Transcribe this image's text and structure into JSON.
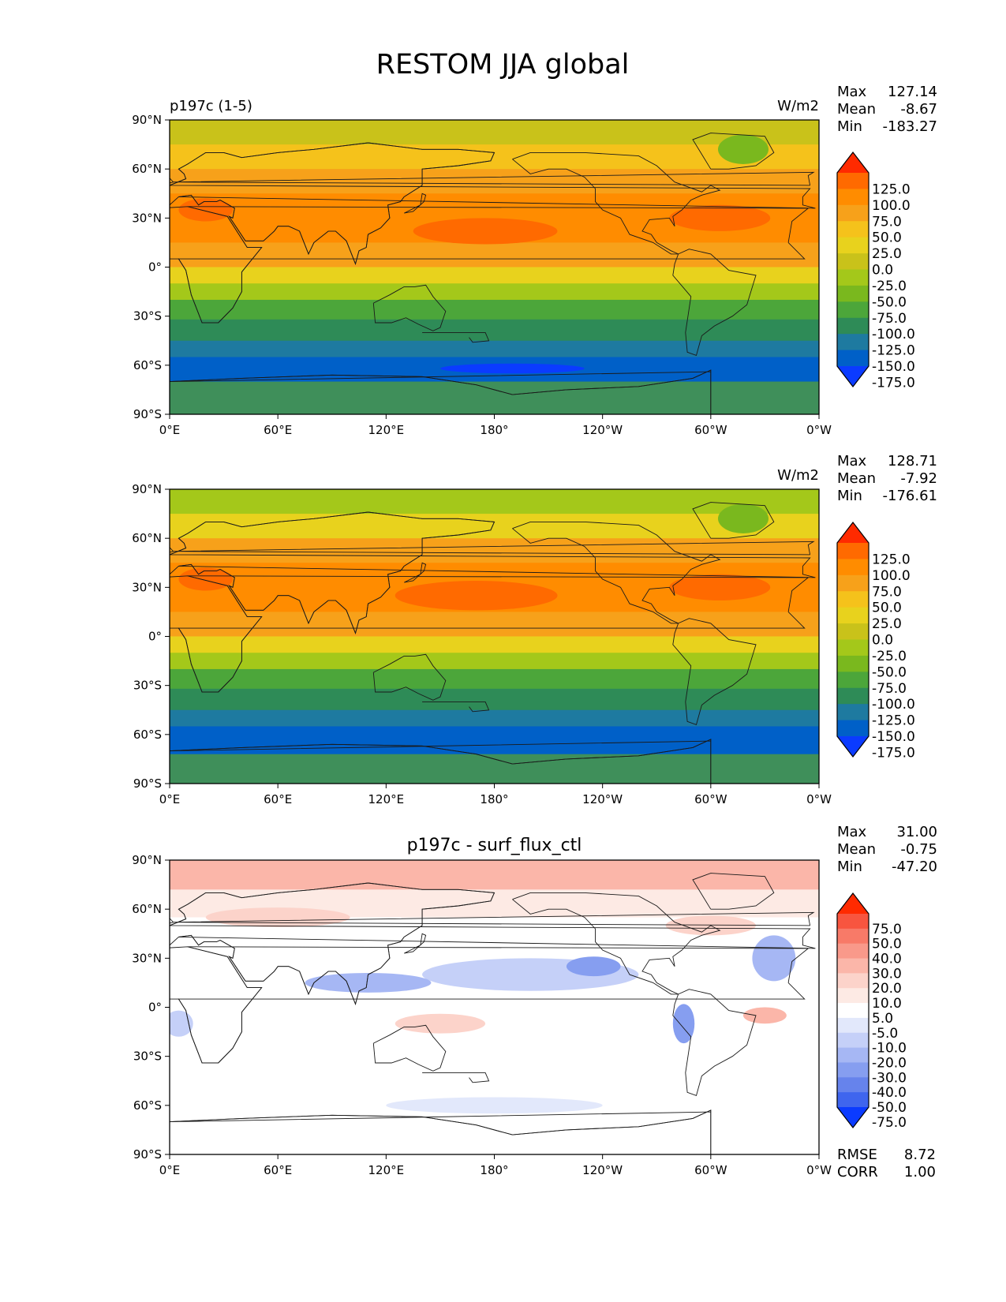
{
  "figure": {
    "title": "RESTOM JJA global"
  },
  "chart_data": [
    {
      "type": "heatmap",
      "title_left": "p197c (1-5)",
      "title_center": "",
      "units": "W/m2",
      "stats": [
        {
          "label": "Max",
          "value": "127.14"
        },
        {
          "label": "Mean",
          "value": "-8.67"
        },
        {
          "label": "Min",
          "value": "-183.27"
        }
      ],
      "footer_stats": [],
      "xticks": [
        "0°E",
        "60°E",
        "120°E",
        "180°",
        "120°W",
        "60°W",
        "0°W"
      ],
      "yticks": [
        "90°N",
        "60°N",
        "30°N",
        "0°",
        "30°S",
        "60°S",
        "90°S"
      ],
      "colorbar": {
        "labels": [
          "125.0",
          "100.0",
          "75.0",
          "50.0",
          "25.0",
          "0.0",
          "-25.0",
          "-50.0",
          "-75.0",
          "-100.0",
          "-125.0",
          "-150.0",
          "-175.0"
        ],
        "colors": [
          "#ff2a00",
          "#ff6a00",
          "#ff8c00",
          "#f7a11a",
          "#f5c21b",
          "#e8d21d",
          "#c9c21a",
          "#a4c81a",
          "#7ab81e",
          "#4ca63a",
          "#2e8b57",
          "#1e7aa0",
          "#0060c8",
          "#0b3bff"
        ]
      },
      "bands": [
        {
          "lat_top": 90,
          "lat_bottom": 75,
          "color": "#c9c21a"
        },
        {
          "lat_top": 75,
          "lat_bottom": 60,
          "color": "#f5c21b"
        },
        {
          "lat_top": 60,
          "lat_bottom": 45,
          "color": "#f7a11a"
        },
        {
          "lat_top": 45,
          "lat_bottom": 15,
          "color": "#ff8c00"
        },
        {
          "lat_top": 15,
          "lat_bottom": 0,
          "color": "#f7a11a"
        },
        {
          "lat_top": 0,
          "lat_bottom": -10,
          "color": "#e8d21d"
        },
        {
          "lat_top": -10,
          "lat_bottom": -20,
          "color": "#a4c81a"
        },
        {
          "lat_top": -20,
          "lat_bottom": -32,
          "color": "#4ca63a"
        },
        {
          "lat_top": -32,
          "lat_bottom": -45,
          "color": "#2e8b57"
        },
        {
          "lat_top": -45,
          "lat_bottom": -55,
          "color": "#1e7aa0"
        },
        {
          "lat_top": -55,
          "lat_bottom": -70,
          "color": "#0060c8"
        },
        {
          "lat_top": -70,
          "lat_bottom": -90,
          "color": "#3f8f5a"
        }
      ],
      "blobs": [
        {
          "lon": 175,
          "lat": 22,
          "rlon": 40,
          "rlat": 8,
          "color": "#ff6a00"
        },
        {
          "lon": 305,
          "lat": 30,
          "rlon": 28,
          "rlat": 8,
          "color": "#ff6a00"
        },
        {
          "lon": 20,
          "lat": 35,
          "rlon": 15,
          "rlat": 7,
          "color": "#ff6a00"
        },
        {
          "lon": 318,
          "lat": 72,
          "rlon": 14,
          "rlat": 9,
          "color": "#7ab81e"
        },
        {
          "lon": 190,
          "lat": -62,
          "rlon": 40,
          "rlat": 3,
          "color": "#0b3bff"
        }
      ]
    },
    {
      "type": "heatmap",
      "title_left": "",
      "title_center": "",
      "units": "W/m2",
      "stats": [
        {
          "label": "Max",
          "value": "128.71"
        },
        {
          "label": "Mean",
          "value": "-7.92"
        },
        {
          "label": "Min",
          "value": "-176.61"
        }
      ],
      "footer_stats": [],
      "xticks": [
        "0°E",
        "60°E",
        "120°E",
        "180°",
        "120°W",
        "60°W",
        "0°W"
      ],
      "yticks": [
        "90°N",
        "60°N",
        "30°N",
        "0°",
        "30°S",
        "60°S",
        "90°S"
      ],
      "colorbar": {
        "labels": [
          "125.0",
          "100.0",
          "75.0",
          "50.0",
          "25.0",
          "0.0",
          "-25.0",
          "-50.0",
          "-75.0",
          "-100.0",
          "-125.0",
          "-150.0",
          "-175.0"
        ],
        "colors": [
          "#ff2a00",
          "#ff6a00",
          "#ff8c00",
          "#f7a11a",
          "#f5c21b",
          "#e8d21d",
          "#c9c21a",
          "#a4c81a",
          "#7ab81e",
          "#4ca63a",
          "#2e8b57",
          "#1e7aa0",
          "#0060c8",
          "#0b3bff"
        ]
      },
      "bands": [
        {
          "lat_top": 90,
          "lat_bottom": 75,
          "color": "#a4c81a"
        },
        {
          "lat_top": 75,
          "lat_bottom": 60,
          "color": "#e8d21d"
        },
        {
          "lat_top": 60,
          "lat_bottom": 45,
          "color": "#f7a11a"
        },
        {
          "lat_top": 45,
          "lat_bottom": 15,
          "color": "#ff8c00"
        },
        {
          "lat_top": 15,
          "lat_bottom": 0,
          "color": "#f7a11a"
        },
        {
          "lat_top": 0,
          "lat_bottom": -10,
          "color": "#e8d21d"
        },
        {
          "lat_top": -10,
          "lat_bottom": -20,
          "color": "#a4c81a"
        },
        {
          "lat_top": -20,
          "lat_bottom": -32,
          "color": "#4ca63a"
        },
        {
          "lat_top": -32,
          "lat_bottom": -45,
          "color": "#2e8b57"
        },
        {
          "lat_top": -45,
          "lat_bottom": -55,
          "color": "#1e7aa0"
        },
        {
          "lat_top": -55,
          "lat_bottom": -72,
          "color": "#0060c8"
        },
        {
          "lat_top": -72,
          "lat_bottom": -90,
          "color": "#3f8f5a"
        }
      ],
      "blobs": [
        {
          "lon": 170,
          "lat": 25,
          "rlon": 45,
          "rlat": 9,
          "color": "#ff6a00"
        },
        {
          "lon": 305,
          "lat": 30,
          "rlon": 28,
          "rlat": 8,
          "color": "#ff6a00"
        },
        {
          "lon": 20,
          "lat": 35,
          "rlon": 15,
          "rlat": 7,
          "color": "#ff6a00"
        },
        {
          "lon": 318,
          "lat": 72,
          "rlon": 14,
          "rlat": 9,
          "color": "#7ab81e"
        }
      ]
    },
    {
      "type": "heatmap",
      "title_left": "",
      "title_center": "p197c - surf_flux_ctl",
      "units": "",
      "stats": [
        {
          "label": "Max",
          "value": "31.00"
        },
        {
          "label": "Mean",
          "value": "-0.75"
        },
        {
          "label": "Min",
          "value": "-47.20"
        }
      ],
      "footer_stats": [
        {
          "label": "RMSE",
          "value": "8.72"
        },
        {
          "label": "CORR",
          "value": "1.00"
        }
      ],
      "xticks": [
        "0°E",
        "60°E",
        "120°E",
        "180°",
        "120°W",
        "60°W",
        "0°W"
      ],
      "yticks": [
        "90°N",
        "60°N",
        "30°N",
        "0°",
        "30°S",
        "60°S",
        "90°S"
      ],
      "colorbar": {
        "labels": [
          "75.0",
          "50.0",
          "40.0",
          "30.0",
          "20.0",
          "10.0",
          "5.0",
          "-5.0",
          "-10.0",
          "-20.0",
          "-30.0",
          "-40.0",
          "-50.0",
          "-75.0"
        ],
        "colors": [
          "#ff2a00",
          "#f8553f",
          "#f87a68",
          "#f9998a",
          "#fbb6a9",
          "#fcd3ca",
          "#fdeae4",
          "#ffffff",
          "#e2e8fb",
          "#c5d0f8",
          "#a6b7f4",
          "#869ef0",
          "#6683ec",
          "#3f65ee",
          "#0b3bff"
        ]
      },
      "bands": [
        {
          "lat_top": 90,
          "lat_bottom": 72,
          "color": "#fbb6a9"
        },
        {
          "lat_top": 72,
          "lat_bottom": 55,
          "color": "#fdeae4"
        },
        {
          "lat_top": 55,
          "lat_bottom": -90,
          "color": "#ffffff"
        }
      ],
      "blobs": [
        {
          "lon": 200,
          "lat": 20,
          "rlon": 60,
          "rlat": 10,
          "color": "#c5d0f8"
        },
        {
          "lon": 235,
          "lat": 25,
          "rlon": 15,
          "rlat": 6,
          "color": "#869ef0"
        },
        {
          "lon": 110,
          "lat": 15,
          "rlon": 35,
          "rlat": 6,
          "color": "#a6b7f4"
        },
        {
          "lon": 285,
          "lat": -10,
          "rlon": 6,
          "rlat": 12,
          "color": "#869ef0"
        },
        {
          "lon": 335,
          "lat": 30,
          "rlon": 12,
          "rlat": 14,
          "color": "#a6b7f4"
        },
        {
          "lon": 180,
          "lat": -60,
          "rlon": 60,
          "rlat": 5,
          "color": "#e2e8fb"
        },
        {
          "lon": 330,
          "lat": -5,
          "rlon": 12,
          "rlat": 5,
          "color": "#fbb6a9"
        },
        {
          "lon": 150,
          "lat": -10,
          "rlon": 25,
          "rlat": 6,
          "color": "#fcd3ca"
        },
        {
          "lon": 60,
          "lat": 55,
          "rlon": 40,
          "rlat": 6,
          "color": "#fcd3ca"
        },
        {
          "lon": 300,
          "lat": 50,
          "rlon": 25,
          "rlat": 6,
          "color": "#fcd3ca"
        },
        {
          "lon": 5,
          "lat": -10,
          "rlon": 8,
          "rlat": 8,
          "color": "#c5d0f8"
        }
      ]
    }
  ]
}
